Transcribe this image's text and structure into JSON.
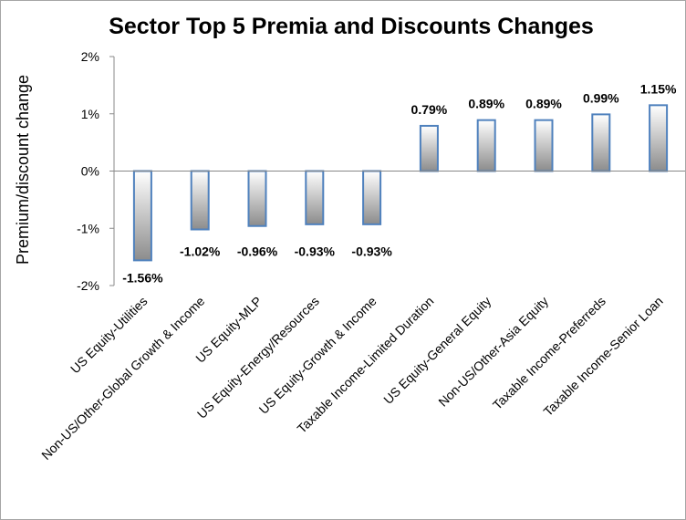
{
  "chart_data": {
    "type": "bar",
    "title": "Sector Top 5 Premia and Discounts Changes",
    "xlabel": "",
    "ylabel": "Premium/discount change",
    "ylim": [
      -2,
      2
    ],
    "yticks": [
      2,
      1,
      0,
      -1,
      -2
    ],
    "ytick_labels": [
      "2%",
      "1%",
      "0%",
      "-1%",
      "-2%"
    ],
    "grid": false,
    "legend": "none",
    "categories": [
      "US Equity-Utilities",
      "Non-US/Other-Global Growth & Income",
      "US Equity-MLP",
      "US Equity-Energy/Resources",
      "US Equity-Growth & Income",
      "Taxable Income-Limited Duration",
      "US Equity-General Equity",
      "Non-US/Other-Asia Equity",
      "Taxable Income-Preferreds",
      "Taxable Income-Senior Loan"
    ],
    "values": [
      -1.56,
      -1.02,
      -0.96,
      -0.93,
      -0.93,
      0.79,
      0.89,
      0.89,
      0.99,
      1.15
    ],
    "data_labels": [
      "-1.56%",
      "-1.02%",
      "-0.96%",
      "-0.93%",
      "-0.93%",
      "0.79%",
      "0.89%",
      "0.89%",
      "0.99%",
      "1.15%"
    ],
    "colors": {
      "bar_border": "#4f81bd",
      "gradient_light": "#ffffff",
      "gradient_dark": "#8c8c8c",
      "axis": "#888888"
    }
  }
}
